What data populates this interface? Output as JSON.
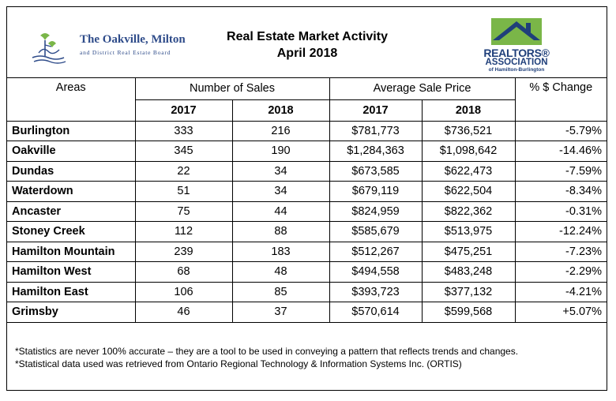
{
  "header": {
    "left_logo": {
      "name": "The Oakville, Milton",
      "subline": "and District Real Estate Board"
    },
    "title_line1": "Real Estate Market Activity",
    "title_line2": "April 2018",
    "right_logo": {
      "line1": "REALTORS®",
      "line2": "ASSOCIATION",
      "line3": "of Hamilton-Burlington"
    }
  },
  "table": {
    "col_headers": [
      "Areas",
      "Number of Sales",
      "Average Sale Price",
      "% $ Change"
    ],
    "year_headers": [
      "2017",
      "2018",
      "2017",
      "2018"
    ],
    "rows": [
      {
        "area": "Burlington",
        "sales_2017": "333",
        "sales_2018": "216",
        "price_2017": "$781,773",
        "price_2018": "$736,521",
        "change": "-5.79%"
      },
      {
        "area": "Oakville",
        "sales_2017": "345",
        "sales_2018": "190",
        "price_2017": "$1,284,363",
        "price_2018": "$1,098,642",
        "change": "-14.46%"
      },
      {
        "area": "Dundas",
        "sales_2017": "22",
        "sales_2018": "34",
        "price_2017": "$673,585",
        "price_2018": "$622,473",
        "change": "-7.59%"
      },
      {
        "area": "Waterdown",
        "sales_2017": "51",
        "sales_2018": "34",
        "price_2017": "$679,119",
        "price_2018": "$622,504",
        "change": "-8.34%"
      },
      {
        "area": "Ancaster",
        "sales_2017": "75",
        "sales_2018": "44",
        "price_2017": "$824,959",
        "price_2018": "$822,362",
        "change": "-0.31%"
      },
      {
        "area": "Stoney Creek",
        "sales_2017": "112",
        "sales_2018": "88",
        "price_2017": "$585,679",
        "price_2018": "$513,975",
        "change": "-12.24%"
      },
      {
        "area": "Hamilton Mountain",
        "sales_2017": "239",
        "sales_2018": "183",
        "price_2017": "$512,267",
        "price_2018": "$475,251",
        "change": "-7.23%"
      },
      {
        "area": "Hamilton West",
        "sales_2017": "68",
        "sales_2018": "48",
        "price_2017": "$494,558",
        "price_2018": "$483,248",
        "change": "-2.29%"
      },
      {
        "area": "Hamilton East",
        "sales_2017": "106",
        "sales_2018": "85",
        "price_2017": "$393,723",
        "price_2018": "$377,132",
        "change": "-4.21%"
      },
      {
        "area": "Grimsby",
        "sales_2017": "46",
        "sales_2018": "37",
        "price_2017": "$570,614",
        "price_2018": "$599,568",
        "change": "+5.07%"
      }
    ]
  },
  "notes": [
    "*Statistics are never 100% accurate – they are a tool to be used in conveying a pattern that reflects trends and changes.",
    "*Statistical data used was retrieved from Ontario Regional Technology & Information Systems Inc. (ORTIS)"
  ],
  "colors": {
    "brand_blue": "#2f4c8a",
    "realtors_blue": "#1f3f7a",
    "realtors_green": "#7ab648",
    "oakville_green": "#7ab648"
  }
}
